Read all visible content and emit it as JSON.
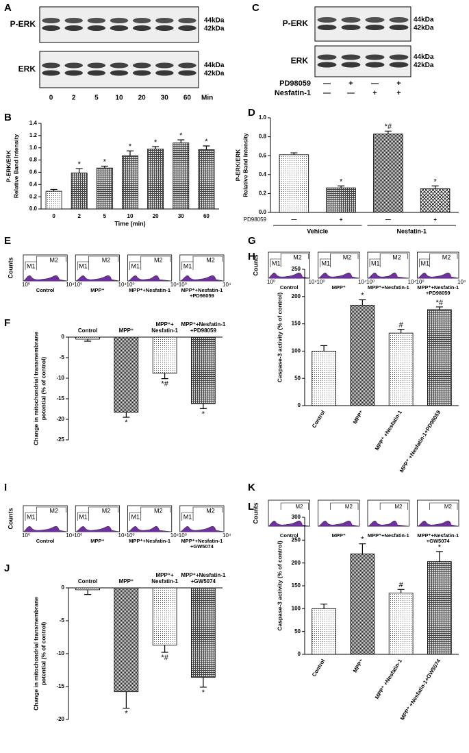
{
  "blots": [
    {
      "letter": "A",
      "rows": [
        {
          "label": "P-ERK",
          "kda": [
            "44kDa",
            "42kDa"
          ]
        },
        {
          "label": "ERK",
          "kda": [
            "44kDa",
            "42kDa"
          ]
        }
      ],
      "lanes": [
        "0",
        "2",
        "5",
        "10",
        "20",
        "30",
        "60"
      ],
      "unit": "Min"
    },
    {
      "letter": "C",
      "rows": [
        {
          "label": "P-ERK",
          "kda": [
            "44kDa",
            "42kDa"
          ]
        },
        {
          "label": "ERK",
          "kda": [
            "44kDa",
            "42kDa"
          ]
        }
      ],
      "treatments": [
        {
          "name": "PD98059",
          "signs": [
            "—",
            "+",
            "—",
            "+"
          ]
        },
        {
          "name": "Nesfatin-1",
          "signs": [
            "—",
            "—",
            "+",
            "+"
          ]
        }
      ]
    }
  ],
  "flow": [
    {
      "letter": "E",
      "ylabel": "Counts",
      "plots": [
        {
          "caption": "Control",
          "gates": [
            "M1",
            "M2"
          ],
          "axis": [
            "10⁰",
            "10⁴"
          ]
        },
        {
          "caption": "MPP⁺",
          "gates": [
            "M1",
            "M2"
          ],
          "axis": [
            "10⁰",
            "10⁴"
          ]
        },
        {
          "caption": "MPP⁺+Nesfatin-1",
          "gates": [
            "M1",
            "M2"
          ],
          "axis": [
            "10⁰",
            "10⁴"
          ]
        },
        {
          "caption": "MPP⁺+Nesfatin-1\n+PD98059",
          "gates": [
            "M1",
            "M2"
          ],
          "axis": [
            "10⁰",
            "10⁴"
          ]
        }
      ]
    },
    {
      "letter": "G",
      "ylabel": "Counts",
      "plots": [
        {
          "caption": "Control",
          "gates": [
            "M1",
            "M2"
          ],
          "axis": [
            "10⁰",
            "10⁴"
          ]
        },
        {
          "caption": "MPP⁺",
          "gates": [
            "M1",
            "M2"
          ],
          "axis": [
            "10⁰",
            "10⁴"
          ]
        },
        {
          "caption": "MPP⁺+Nesfatin-1",
          "gates": [
            "M1",
            "M2"
          ],
          "axis": [
            "10⁰",
            "10⁴"
          ]
        },
        {
          "caption": "MPP⁺+Nesfatin-1\n+PD98059",
          "gates": [
            "M1",
            "M2"
          ],
          "axis": [
            "10⁰",
            "10⁴"
          ]
        }
      ]
    },
    {
      "letter": "I",
      "ylabel": "Counts",
      "plots": [
        {
          "caption": "Control",
          "gates": [
            "M1",
            "M2"
          ],
          "axis": [
            "10⁰",
            "10⁴"
          ]
        },
        {
          "caption": "MPP⁺",
          "gates": [
            "M1",
            "M2"
          ],
          "axis": [
            "10⁰",
            "10⁴"
          ]
        },
        {
          "caption": "MPP⁺+Nesfatin-1",
          "gates": [
            "M1",
            "M2"
          ],
          "axis": [
            "10⁰",
            "10⁴"
          ]
        },
        {
          "caption": "MPP⁺+Nesfatin-1\n+GW5074",
          "gates": [
            "M1",
            "M2"
          ],
          "axis": [
            "10⁰",
            "10⁴"
          ]
        }
      ]
    },
    {
      "letter": "K",
      "ylabel": "Counts",
      "plots": [
        {
          "caption": "Control",
          "gates": [
            "M2"
          ]
        },
        {
          "caption": "MPP⁺",
          "gates": [
            "M2"
          ]
        },
        {
          "caption": "MPP⁺+Nesfatin-1",
          "gates": [
            "M2"
          ]
        },
        {
          "caption": "MPP⁺+Nesfatin-1\n+GW5074",
          "gates": [
            "M2"
          ]
        }
      ]
    }
  ],
  "chart_data": [
    {
      "type": "bar",
      "letter": "B",
      "ylabel": [
        "P-ERK/ERK",
        "Relative Band Intensity"
      ],
      "xlabel": "Time (min)",
      "categories": [
        "0",
        "2",
        "5",
        "10",
        "20",
        "30",
        "60"
      ],
      "values": [
        0.29,
        0.59,
        0.67,
        0.87,
        0.98,
        1.08,
        0.97
      ],
      "errors": [
        0.03,
        0.07,
        0.03,
        0.08,
        0.04,
        0.05,
        0.06
      ],
      "annotations": [
        null,
        "*",
        "*",
        "*",
        "*",
        "*",
        "*"
      ],
      "fills": [
        "dots",
        "grid",
        "grid",
        "grid",
        "grid",
        "grid",
        "grid"
      ],
      "ylim": [
        0,
        1.4
      ],
      "yticks": [
        {
          "value": 0,
          "label": "0.0"
        },
        0.2,
        0.4,
        0.6,
        0.8,
        {
          "value": 1,
          "label": "1.0"
        },
        1.2,
        1.4
      ]
    },
    {
      "type": "bar",
      "letter": "D",
      "ylabel": [
        "P-ERK/ERK",
        "Relative Band Intensity"
      ],
      "row_label": "PD98059",
      "categories": [
        "—",
        "+",
        "—",
        "+"
      ],
      "groups": [
        "Vehicle",
        "Nesfatin-1"
      ],
      "values": [
        0.61,
        0.26,
        0.83,
        0.25
      ],
      "errors": [
        0.02,
        0.02,
        0.03,
        0.03
      ],
      "annotations": [
        null,
        "*",
        "*#",
        "*"
      ],
      "fills": [
        "dots",
        "grid",
        "checker",
        "cross"
      ],
      "ylim": [
        0,
        1.0
      ],
      "yticks": [
        {
          "value": 0,
          "label": "0.0"
        },
        0.2,
        0.4,
        0.6,
        0.8,
        {
          "value": 1,
          "label": "1.0"
        }
      ]
    },
    {
      "type": "bar",
      "letter": "F",
      "ylabel": [
        "Change in mitochondrial transmembrane",
        "potential (% of control)"
      ],
      "category_position": "top",
      "categories": [
        "Control",
        "MPP⁺",
        "MPP⁺+\nNesfatin-1",
        "MPP⁺+Nesfatin-1\n+PD98059"
      ],
      "values": [
        -0.5,
        -18.3,
        -8.8,
        -16.2
      ],
      "errors": [
        0.5,
        1.2,
        1.3,
        1.2
      ],
      "annotations": [
        null,
        "*",
        "*#",
        "*"
      ],
      "fills": [
        "dots",
        "checker",
        "dots",
        "grid"
      ],
      "ylim": [
        -25,
        0
      ],
      "yticks": [
        0,
        -5,
        -10,
        -15,
        -20,
        -25
      ]
    },
    {
      "type": "bar",
      "letter": "H",
      "ylabel": [
        "Caspase-3 activity (% of control)"
      ],
      "rotated_labels": true,
      "categories": [
        "Control",
        "MPP⁺",
        "MPP⁺ +Nesfatin-1",
        "MPP⁺ +Nesfatin-1+PD98059"
      ],
      "values": [
        100,
        184,
        133,
        176
      ],
      "errors": [
        10,
        10,
        7,
        5
      ],
      "annotations": [
        null,
        "*",
        "#",
        "*#"
      ],
      "fills": [
        "dots",
        "checker",
        "dots",
        "grid"
      ],
      "ylim": [
        0,
        250
      ],
      "yticks": [
        0,
        50,
        100,
        150,
        200,
        250
      ]
    },
    {
      "type": "bar",
      "letter": "J",
      "ylabel": [
        "Change in mitochondrial transmembrane",
        "potential (% of control)"
      ],
      "category_position": "top",
      "categories": [
        "Control",
        "MPP⁺",
        "MPP⁺+\nNesfatin-1",
        "MPP⁺+Nesfatin-1\n+GW5074"
      ],
      "values": [
        -0.3,
        -15.8,
        -8.7,
        -13.6
      ],
      "errors": [
        0.7,
        2.5,
        1.1,
        1.5
      ],
      "annotations": [
        null,
        "*",
        "*#",
        "*"
      ],
      "fills": [
        "dots",
        "checker",
        "dots",
        "grid"
      ],
      "ylim": [
        -20,
        0
      ],
      "yticks": [
        0,
        -5,
        -10,
        -15,
        -20
      ]
    },
    {
      "type": "bar",
      "letter": "L",
      "ylabel": [
        "Caspase-3 activity (% of control)"
      ],
      "rotated_labels": true,
      "categories": [
        "Control",
        "MPP⁺",
        "MPP⁺ +Nesfatin-1",
        "MPP⁺ +Nesfatin-1+GW5074"
      ],
      "values": [
        100,
        220,
        134,
        203
      ],
      "errors": [
        10,
        22,
        8,
        22
      ],
      "annotations": [
        null,
        "*",
        "#",
        "*"
      ],
      "fills": [
        "dots",
        "checker",
        "dots",
        "grid"
      ],
      "ylim": [
        0,
        300
      ],
      "yticks": [
        0,
        50,
        100,
        150,
        200,
        250,
        300
      ]
    }
  ]
}
